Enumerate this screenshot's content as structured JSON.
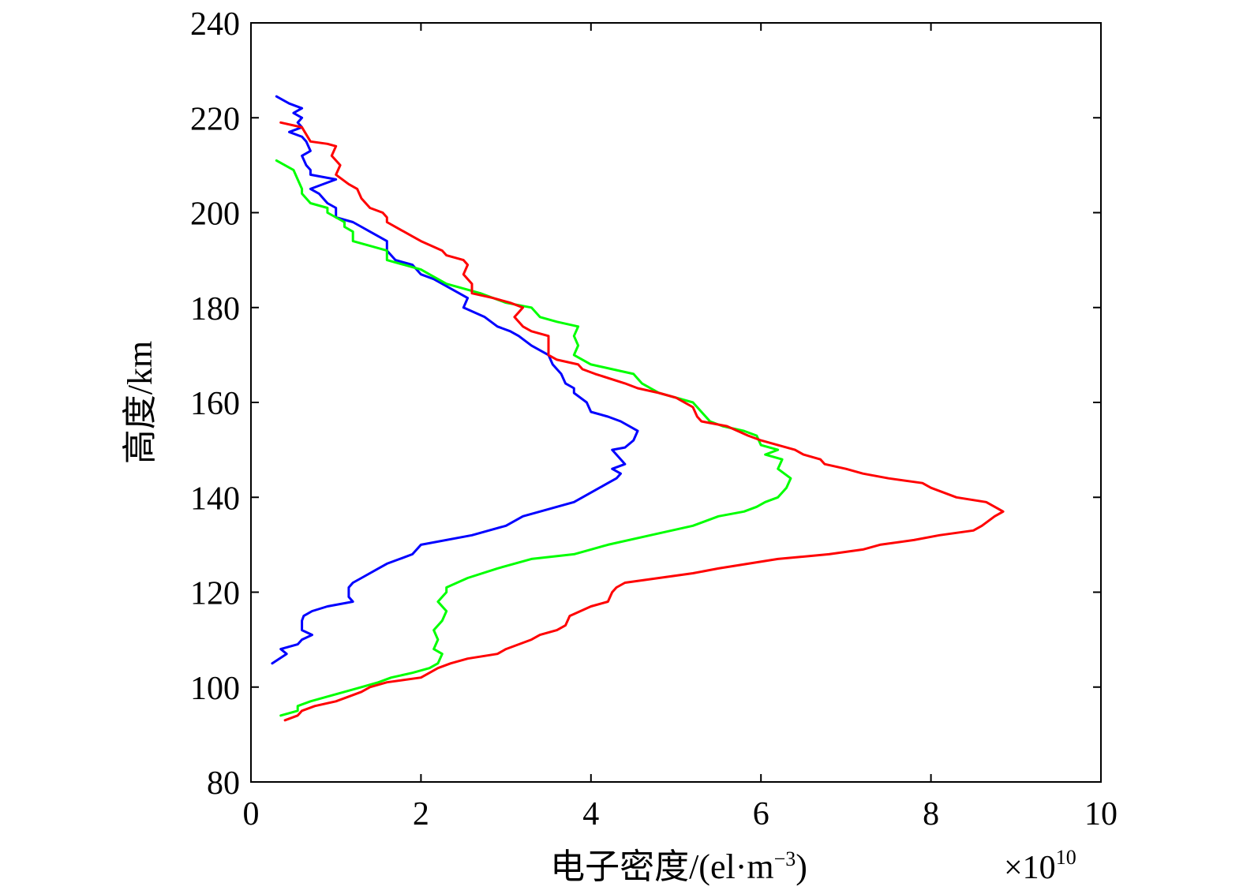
{
  "chart_data": {
    "type": "line",
    "xlabel": "电子密度/(el·m",
    "xlabel_exponent": "−3",
    "xlabel_close": ")",
    "ylabel": "高度/km",
    "x_multiplier_base": "×10",
    "x_multiplier_exponent": "10",
    "xlim": [
      0,
      10
    ],
    "ylim": [
      80,
      240
    ],
    "x_ticks": [
      0,
      2,
      4,
      6,
      8,
      10
    ],
    "y_ticks": [
      80,
      100,
      120,
      140,
      160,
      180,
      200,
      220,
      240
    ],
    "x_tick_labels": [
      "0",
      "2",
      "4",
      "6",
      "8",
      "10"
    ],
    "y_tick_labels": [
      "80",
      "100",
      "120",
      "140",
      "160",
      "180",
      "200",
      "220",
      "240"
    ],
    "grid": false,
    "legend": "none",
    "series": [
      {
        "color": "#0000ff",
        "points": [
          [
            0.25,
            105
          ],
          [
            0.42,
            107
          ],
          [
            0.35,
            108
          ],
          [
            0.55,
            109
          ],
          [
            0.6,
            110
          ],
          [
            0.72,
            111
          ],
          [
            0.6,
            112
          ],
          [
            0.6,
            114
          ],
          [
            0.62,
            115
          ],
          [
            0.72,
            116
          ],
          [
            0.9,
            117
          ],
          [
            1.2,
            118
          ],
          [
            1.15,
            119
          ],
          [
            1.15,
            121
          ],
          [
            1.2,
            122
          ],
          [
            1.3,
            123
          ],
          [
            1.5,
            125
          ],
          [
            1.6,
            126
          ],
          [
            1.75,
            127
          ],
          [
            1.9,
            128
          ],
          [
            1.95,
            129
          ],
          [
            2.0,
            130
          ],
          [
            2.6,
            132
          ],
          [
            3.0,
            134
          ],
          [
            3.1,
            135
          ],
          [
            3.2,
            136
          ],
          [
            3.4,
            137
          ],
          [
            3.6,
            138
          ],
          [
            3.8,
            139
          ],
          [
            3.9,
            140
          ],
          [
            4.1,
            142
          ],
          [
            4.2,
            143
          ],
          [
            4.3,
            144
          ],
          [
            4.35,
            145
          ],
          [
            4.25,
            146
          ],
          [
            4.4,
            147
          ],
          [
            4.3,
            149
          ],
          [
            4.25,
            150
          ],
          [
            4.4,
            150.5
          ],
          [
            4.5,
            152
          ],
          [
            4.55,
            154
          ],
          [
            4.35,
            156
          ],
          [
            4.2,
            157
          ],
          [
            4.0,
            158
          ],
          [
            3.95,
            160
          ],
          [
            3.8,
            162
          ],
          [
            3.8,
            163
          ],
          [
            3.7,
            164
          ],
          [
            3.65,
            166
          ],
          [
            3.55,
            168
          ],
          [
            3.5,
            170
          ],
          [
            3.3,
            172
          ],
          [
            3.15,
            174
          ],
          [
            3.05,
            175
          ],
          [
            2.9,
            176
          ],
          [
            2.75,
            178
          ],
          [
            2.5,
            180
          ],
          [
            2.55,
            182
          ],
          [
            2.35,
            184
          ],
          [
            2.15,
            186
          ],
          [
            2.0,
            187
          ],
          [
            1.9,
            189
          ],
          [
            1.7,
            190
          ],
          [
            1.6,
            192
          ],
          [
            1.6,
            194
          ],
          [
            1.4,
            196
          ],
          [
            1.3,
            197
          ],
          [
            1.2,
            198
          ],
          [
            1.0,
            199
          ],
          [
            1.0,
            201
          ],
          [
            0.9,
            202
          ],
          [
            0.8,
            204
          ],
          [
            0.7,
            205
          ],
          [
            0.85,
            206
          ],
          [
            1.0,
            207
          ],
          [
            0.7,
            208
          ],
          [
            0.7,
            209
          ],
          [
            0.65,
            210
          ],
          [
            0.6,
            212
          ],
          [
            0.7,
            213
          ],
          [
            0.65,
            215
          ],
          [
            0.6,
            216
          ],
          [
            0.45,
            217
          ],
          [
            0.6,
            218
          ],
          [
            0.55,
            219
          ],
          [
            0.6,
            220
          ],
          [
            0.5,
            221
          ],
          [
            0.6,
            222
          ],
          [
            0.45,
            223
          ],
          [
            0.3,
            224.5
          ]
        ]
      },
      {
        "color": "#00ff00",
        "points": [
          [
            0.35,
            94
          ],
          [
            0.55,
            95
          ],
          [
            0.55,
            96
          ],
          [
            0.7,
            97
          ],
          [
            0.9,
            98
          ],
          [
            1.1,
            99
          ],
          [
            1.3,
            100
          ],
          [
            1.5,
            101
          ],
          [
            1.65,
            102
          ],
          [
            1.9,
            103
          ],
          [
            2.1,
            104
          ],
          [
            2.2,
            105
          ],
          [
            2.25,
            107
          ],
          [
            2.15,
            108
          ],
          [
            2.2,
            110
          ],
          [
            2.15,
            112
          ],
          [
            2.25,
            114
          ],
          [
            2.3,
            116
          ],
          [
            2.2,
            118
          ],
          [
            2.3,
            120
          ],
          [
            2.3,
            121
          ],
          [
            2.55,
            123
          ],
          [
            2.9,
            125
          ],
          [
            3.3,
            127
          ],
          [
            3.8,
            128
          ],
          [
            4.0,
            129
          ],
          [
            4.2,
            130
          ],
          [
            4.7,
            132
          ],
          [
            5.2,
            134
          ],
          [
            5.5,
            136
          ],
          [
            5.8,
            137
          ],
          [
            5.95,
            138
          ],
          [
            6.05,
            139
          ],
          [
            6.2,
            140
          ],
          [
            6.3,
            142
          ],
          [
            6.35,
            144
          ],
          [
            6.2,
            146
          ],
          [
            6.25,
            148
          ],
          [
            6.05,
            149
          ],
          [
            6.2,
            150
          ],
          [
            6.0,
            151
          ],
          [
            5.95,
            153
          ],
          [
            5.8,
            154
          ],
          [
            5.55,
            155
          ],
          [
            5.4,
            156
          ],
          [
            5.3,
            158
          ],
          [
            5.2,
            160
          ],
          [
            5.0,
            161
          ],
          [
            4.8,
            162
          ],
          [
            4.6,
            164
          ],
          [
            4.55,
            165
          ],
          [
            4.5,
            166
          ],
          [
            4.25,
            167
          ],
          [
            4.0,
            168
          ],
          [
            3.8,
            170
          ],
          [
            3.85,
            172
          ],
          [
            3.8,
            174
          ],
          [
            3.85,
            176
          ],
          [
            3.6,
            177
          ],
          [
            3.4,
            178
          ],
          [
            3.3,
            180
          ],
          [
            3.0,
            181
          ],
          [
            2.7,
            183
          ],
          [
            2.5,
            184
          ],
          [
            2.3,
            185
          ],
          [
            2.1,
            187
          ],
          [
            2.0,
            188
          ],
          [
            1.8,
            189
          ],
          [
            1.6,
            190
          ],
          [
            1.6,
            192
          ],
          [
            1.4,
            193
          ],
          [
            1.2,
            194
          ],
          [
            1.2,
            196
          ],
          [
            1.1,
            197
          ],
          [
            1.1,
            198
          ],
          [
            0.9,
            200
          ],
          [
            0.9,
            201
          ],
          [
            0.7,
            202
          ],
          [
            0.6,
            204
          ],
          [
            0.6,
            205
          ],
          [
            0.55,
            207
          ],
          [
            0.5,
            209
          ],
          [
            0.4,
            210
          ],
          [
            0.3,
            211
          ]
        ]
      },
      {
        "color": "#ff0000",
        "points": [
          [
            0.4,
            93
          ],
          [
            0.55,
            94
          ],
          [
            0.6,
            95
          ],
          [
            0.75,
            96
          ],
          [
            1.0,
            97
          ],
          [
            1.15,
            98
          ],
          [
            1.3,
            99
          ],
          [
            1.4,
            100
          ],
          [
            1.6,
            101
          ],
          [
            2.0,
            102
          ],
          [
            2.1,
            103
          ],
          [
            2.2,
            104
          ],
          [
            2.35,
            105
          ],
          [
            2.55,
            106
          ],
          [
            2.9,
            107
          ],
          [
            3.0,
            108
          ],
          [
            3.3,
            110
          ],
          [
            3.4,
            111
          ],
          [
            3.6,
            112
          ],
          [
            3.7,
            113
          ],
          [
            3.75,
            115
          ],
          [
            4.0,
            117
          ],
          [
            4.2,
            118
          ],
          [
            4.25,
            120
          ],
          [
            4.3,
            121
          ],
          [
            4.4,
            122
          ],
          [
            4.8,
            123
          ],
          [
            5.2,
            124
          ],
          [
            5.5,
            125
          ],
          [
            5.85,
            126
          ],
          [
            6.2,
            127
          ],
          [
            6.8,
            128
          ],
          [
            7.2,
            129
          ],
          [
            7.4,
            130
          ],
          [
            7.8,
            131
          ],
          [
            8.1,
            132
          ],
          [
            8.5,
            133
          ],
          [
            8.6,
            134
          ],
          [
            8.75,
            136
          ],
          [
            8.85,
            137
          ],
          [
            8.75,
            138
          ],
          [
            8.65,
            139
          ],
          [
            8.3,
            140
          ],
          [
            8.0,
            142
          ],
          [
            7.9,
            143
          ],
          [
            7.5,
            144
          ],
          [
            7.2,
            145
          ],
          [
            7.0,
            146
          ],
          [
            6.75,
            147
          ],
          [
            6.7,
            148
          ],
          [
            6.5,
            149
          ],
          [
            6.4,
            150
          ],
          [
            6.2,
            151
          ],
          [
            6.0,
            152
          ],
          [
            5.85,
            153
          ],
          [
            5.6,
            155
          ],
          [
            5.3,
            156
          ],
          [
            5.25,
            157
          ],
          [
            5.2,
            159
          ],
          [
            5.0,
            161
          ],
          [
            4.8,
            162
          ],
          [
            4.55,
            163
          ],
          [
            4.4,
            164
          ],
          [
            4.05,
            166
          ],
          [
            3.9,
            167
          ],
          [
            3.85,
            168
          ],
          [
            3.6,
            169
          ],
          [
            3.5,
            170
          ],
          [
            3.5,
            172
          ],
          [
            3.5,
            174
          ],
          [
            3.3,
            175
          ],
          [
            3.2,
            176
          ],
          [
            3.1,
            178
          ],
          [
            3.15,
            179
          ],
          [
            3.2,
            180
          ],
          [
            3.05,
            181
          ],
          [
            2.85,
            182
          ],
          [
            2.6,
            183
          ],
          [
            2.6,
            185
          ],
          [
            2.5,
            187
          ],
          [
            2.55,
            189
          ],
          [
            2.5,
            190
          ],
          [
            2.3,
            191
          ],
          [
            2.25,
            192
          ],
          [
            2.0,
            194
          ],
          [
            1.9,
            195
          ],
          [
            1.8,
            196
          ],
          [
            1.6,
            198
          ],
          [
            1.6,
            199
          ],
          [
            1.55,
            200
          ],
          [
            1.4,
            201
          ],
          [
            1.3,
            203
          ],
          [
            1.25,
            205
          ],
          [
            1.15,
            206
          ],
          [
            1.0,
            208
          ],
          [
            1.05,
            210
          ],
          [
            0.95,
            212
          ],
          [
            1.0,
            214
          ],
          [
            0.9,
            214.5
          ],
          [
            0.7,
            215
          ],
          [
            0.6,
            218
          ],
          [
            0.35,
            219
          ]
        ]
      }
    ]
  }
}
